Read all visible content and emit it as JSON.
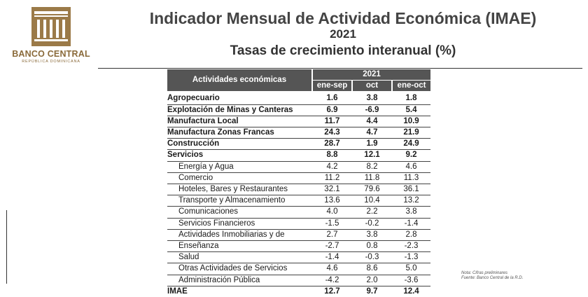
{
  "logo": {
    "name": "BANCO CENTRAL",
    "subtitle": "REPÚBLICA DOMINICANA"
  },
  "header": {
    "title": "Indicador Mensual de Actividad Económica (IMAE)",
    "year": "2021",
    "subtitle": "Tasas de crecimiento interanual (%)"
  },
  "table": {
    "activity_header": "Actividades económicas",
    "year_header": "2021",
    "periods": [
      "ene-sep",
      "oct",
      "ene-oct"
    ],
    "rows": [
      {
        "name": "Agropecuario",
        "values": [
          "1.6",
          "3.8",
          "1.8"
        ]
      },
      {
        "name": "Explotación de Minas y Canteras",
        "values": [
          "6.9",
          "-6.9",
          "5.4"
        ]
      },
      {
        "name": "Manufactura Local",
        "values": [
          "11.7",
          "4.4",
          "10.9"
        ]
      },
      {
        "name": "Manufactura Zonas Francas",
        "values": [
          "24.3",
          "4.7",
          "21.9"
        ]
      },
      {
        "name": "Construcción",
        "values": [
          "28.7",
          "1.9",
          "24.9"
        ]
      },
      {
        "name": "Servicios",
        "values": [
          "8.8",
          "12.1",
          "9.2"
        ]
      },
      {
        "name": "Energía y Agua",
        "values": [
          "4.2",
          "8.2",
          "4.6"
        ]
      },
      {
        "name": "Comercio",
        "values": [
          "11.2",
          "11.8",
          "11.3"
        ]
      },
      {
        "name": "Hoteles, Bares y Restaurantes",
        "values": [
          "32.1",
          "79.6",
          "36.1"
        ]
      },
      {
        "name": "Transporte y Almacenamiento",
        "values": [
          "13.6",
          "10.4",
          "13.2"
        ]
      },
      {
        "name": "Comunicaciones",
        "values": [
          "4.0",
          "2.2",
          "3.8"
        ]
      },
      {
        "name": "Servicios Financieros",
        "values": [
          "-1.5",
          "-0.2",
          "-1.4"
        ]
      },
      {
        "name": "Actividades Inmobiliarias y de",
        "values": [
          "2.7",
          "3.8",
          "2.8"
        ]
      },
      {
        "name": "Enseñanza",
        "values": [
          "-2.7",
          "0.8",
          "-2.3"
        ]
      },
      {
        "name": "Salud",
        "values": [
          "-1.4",
          "-0.3",
          "-1.3"
        ]
      },
      {
        "name": "Otras Actividades de Servicios",
        "values": [
          "4.6",
          "8.6",
          "5.0"
        ]
      },
      {
        "name": "Administración Pública",
        "values": [
          "-4.2",
          "2.0",
          "-3.6"
        ]
      },
      {
        "name": "IMAE",
        "values": [
          "12.7",
          "9.7",
          "12.4"
        ]
      }
    ]
  },
  "notes": {
    "line1": "Nota: Cifras preliminares",
    "line2": "Fuente: Banco Central de la R.D."
  }
}
